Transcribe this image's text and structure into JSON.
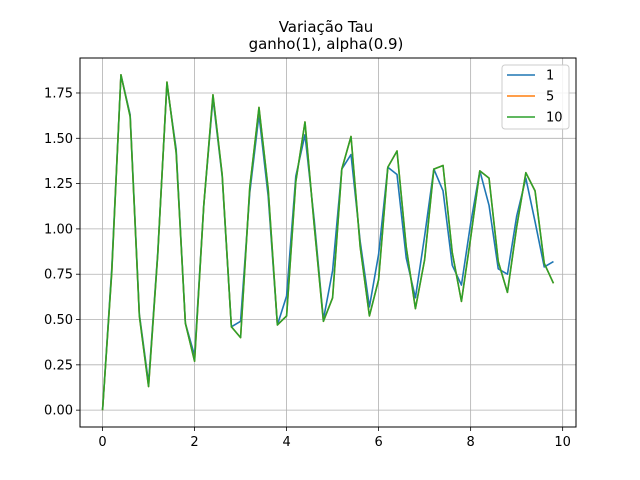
{
  "chart_data": {
    "type": "line",
    "title": "Variação Tau",
    "subtitle": "ganho(1), alpha(0.9)",
    "xlabel": "",
    "ylabel": "",
    "xlim": [
      -0.49,
      10.29
    ],
    "ylim": [
      -0.093,
      1.943
    ],
    "xticks": [
      0,
      2,
      4,
      6,
      8,
      10
    ],
    "yticks": [
      0.0,
      0.25,
      0.5,
      0.75,
      1.0,
      1.25,
      1.5,
      1.75
    ],
    "xtick_labels": [
      "0",
      "2",
      "4",
      "6",
      "8",
      "10"
    ],
    "ytick_labels": [
      "0.00",
      "0.25",
      "0.50",
      "0.75",
      "1.00",
      "1.25",
      "1.50",
      "1.75"
    ],
    "grid": true,
    "legend_position": "top-right",
    "x": [
      0,
      0.2,
      0.4,
      0.6,
      0.8,
      1.0,
      1.2,
      1.4,
      1.6,
      1.8,
      2.0,
      2.2,
      2.4,
      2.6,
      2.8,
      3.0,
      3.2,
      3.4,
      3.6,
      3.8,
      4.0,
      4.2,
      4.4,
      4.6,
      4.8,
      5.0,
      5.2,
      5.4,
      5.6,
      5.8,
      6.0,
      6.2,
      6.4,
      6.6,
      6.8,
      7.0,
      7.2,
      7.4,
      7.6,
      7.8,
      8.0,
      8.2,
      8.4,
      8.6,
      8.8,
      9.0,
      9.2,
      9.4,
      9.6,
      9.8
    ],
    "series": [
      {
        "name": "1",
        "color": "#1f77b4",
        "values": [
          0.0,
          0.78,
          1.85,
          1.63,
          0.53,
          0.15,
          0.87,
          1.8,
          1.44,
          0.48,
          0.3,
          1.13,
          1.72,
          1.29,
          0.46,
          0.49,
          1.2,
          1.63,
          1.18,
          0.47,
          0.63,
          1.29,
          1.52,
          1.05,
          0.5,
          0.77,
          1.33,
          1.41,
          0.93,
          0.57,
          0.86,
          1.34,
          1.3,
          0.84,
          0.62,
          0.96,
          1.33,
          1.21,
          0.8,
          0.69,
          1.03,
          1.32,
          1.13,
          0.78,
          0.75,
          1.07,
          1.28,
          1.04,
          0.79,
          0.82
        ]
      },
      {
        "name": "5",
        "color": "#ff7f0e",
        "values": [
          0.0,
          0.76,
          1.85,
          1.62,
          0.52,
          0.13,
          0.86,
          1.81,
          1.42,
          0.48,
          0.27,
          1.13,
          1.74,
          1.3,
          0.46,
          0.4,
          1.23,
          1.67,
          1.22,
          0.47,
          0.52,
          1.26,
          1.59,
          1.02,
          0.49,
          0.62,
          1.33,
          1.51,
          0.9,
          0.52,
          0.72,
          1.34,
          1.43,
          0.9,
          0.56,
          0.83,
          1.33,
          1.35,
          0.87,
          0.6,
          0.95,
          1.32,
          1.28,
          0.82,
          0.65,
          1.01,
          1.31,
          1.21,
          0.81,
          0.7
        ]
      },
      {
        "name": "10",
        "color": "#2ca02c",
        "values": [
          0.0,
          0.76,
          1.85,
          1.62,
          0.52,
          0.13,
          0.86,
          1.81,
          1.42,
          0.48,
          0.27,
          1.13,
          1.74,
          1.3,
          0.46,
          0.4,
          1.23,
          1.67,
          1.22,
          0.47,
          0.52,
          1.26,
          1.59,
          1.02,
          0.49,
          0.62,
          1.33,
          1.51,
          0.9,
          0.52,
          0.72,
          1.34,
          1.43,
          0.9,
          0.56,
          0.83,
          1.33,
          1.35,
          0.87,
          0.6,
          0.95,
          1.32,
          1.28,
          0.82,
          0.65,
          1.01,
          1.31,
          1.21,
          0.81,
          0.7
        ]
      }
    ]
  }
}
